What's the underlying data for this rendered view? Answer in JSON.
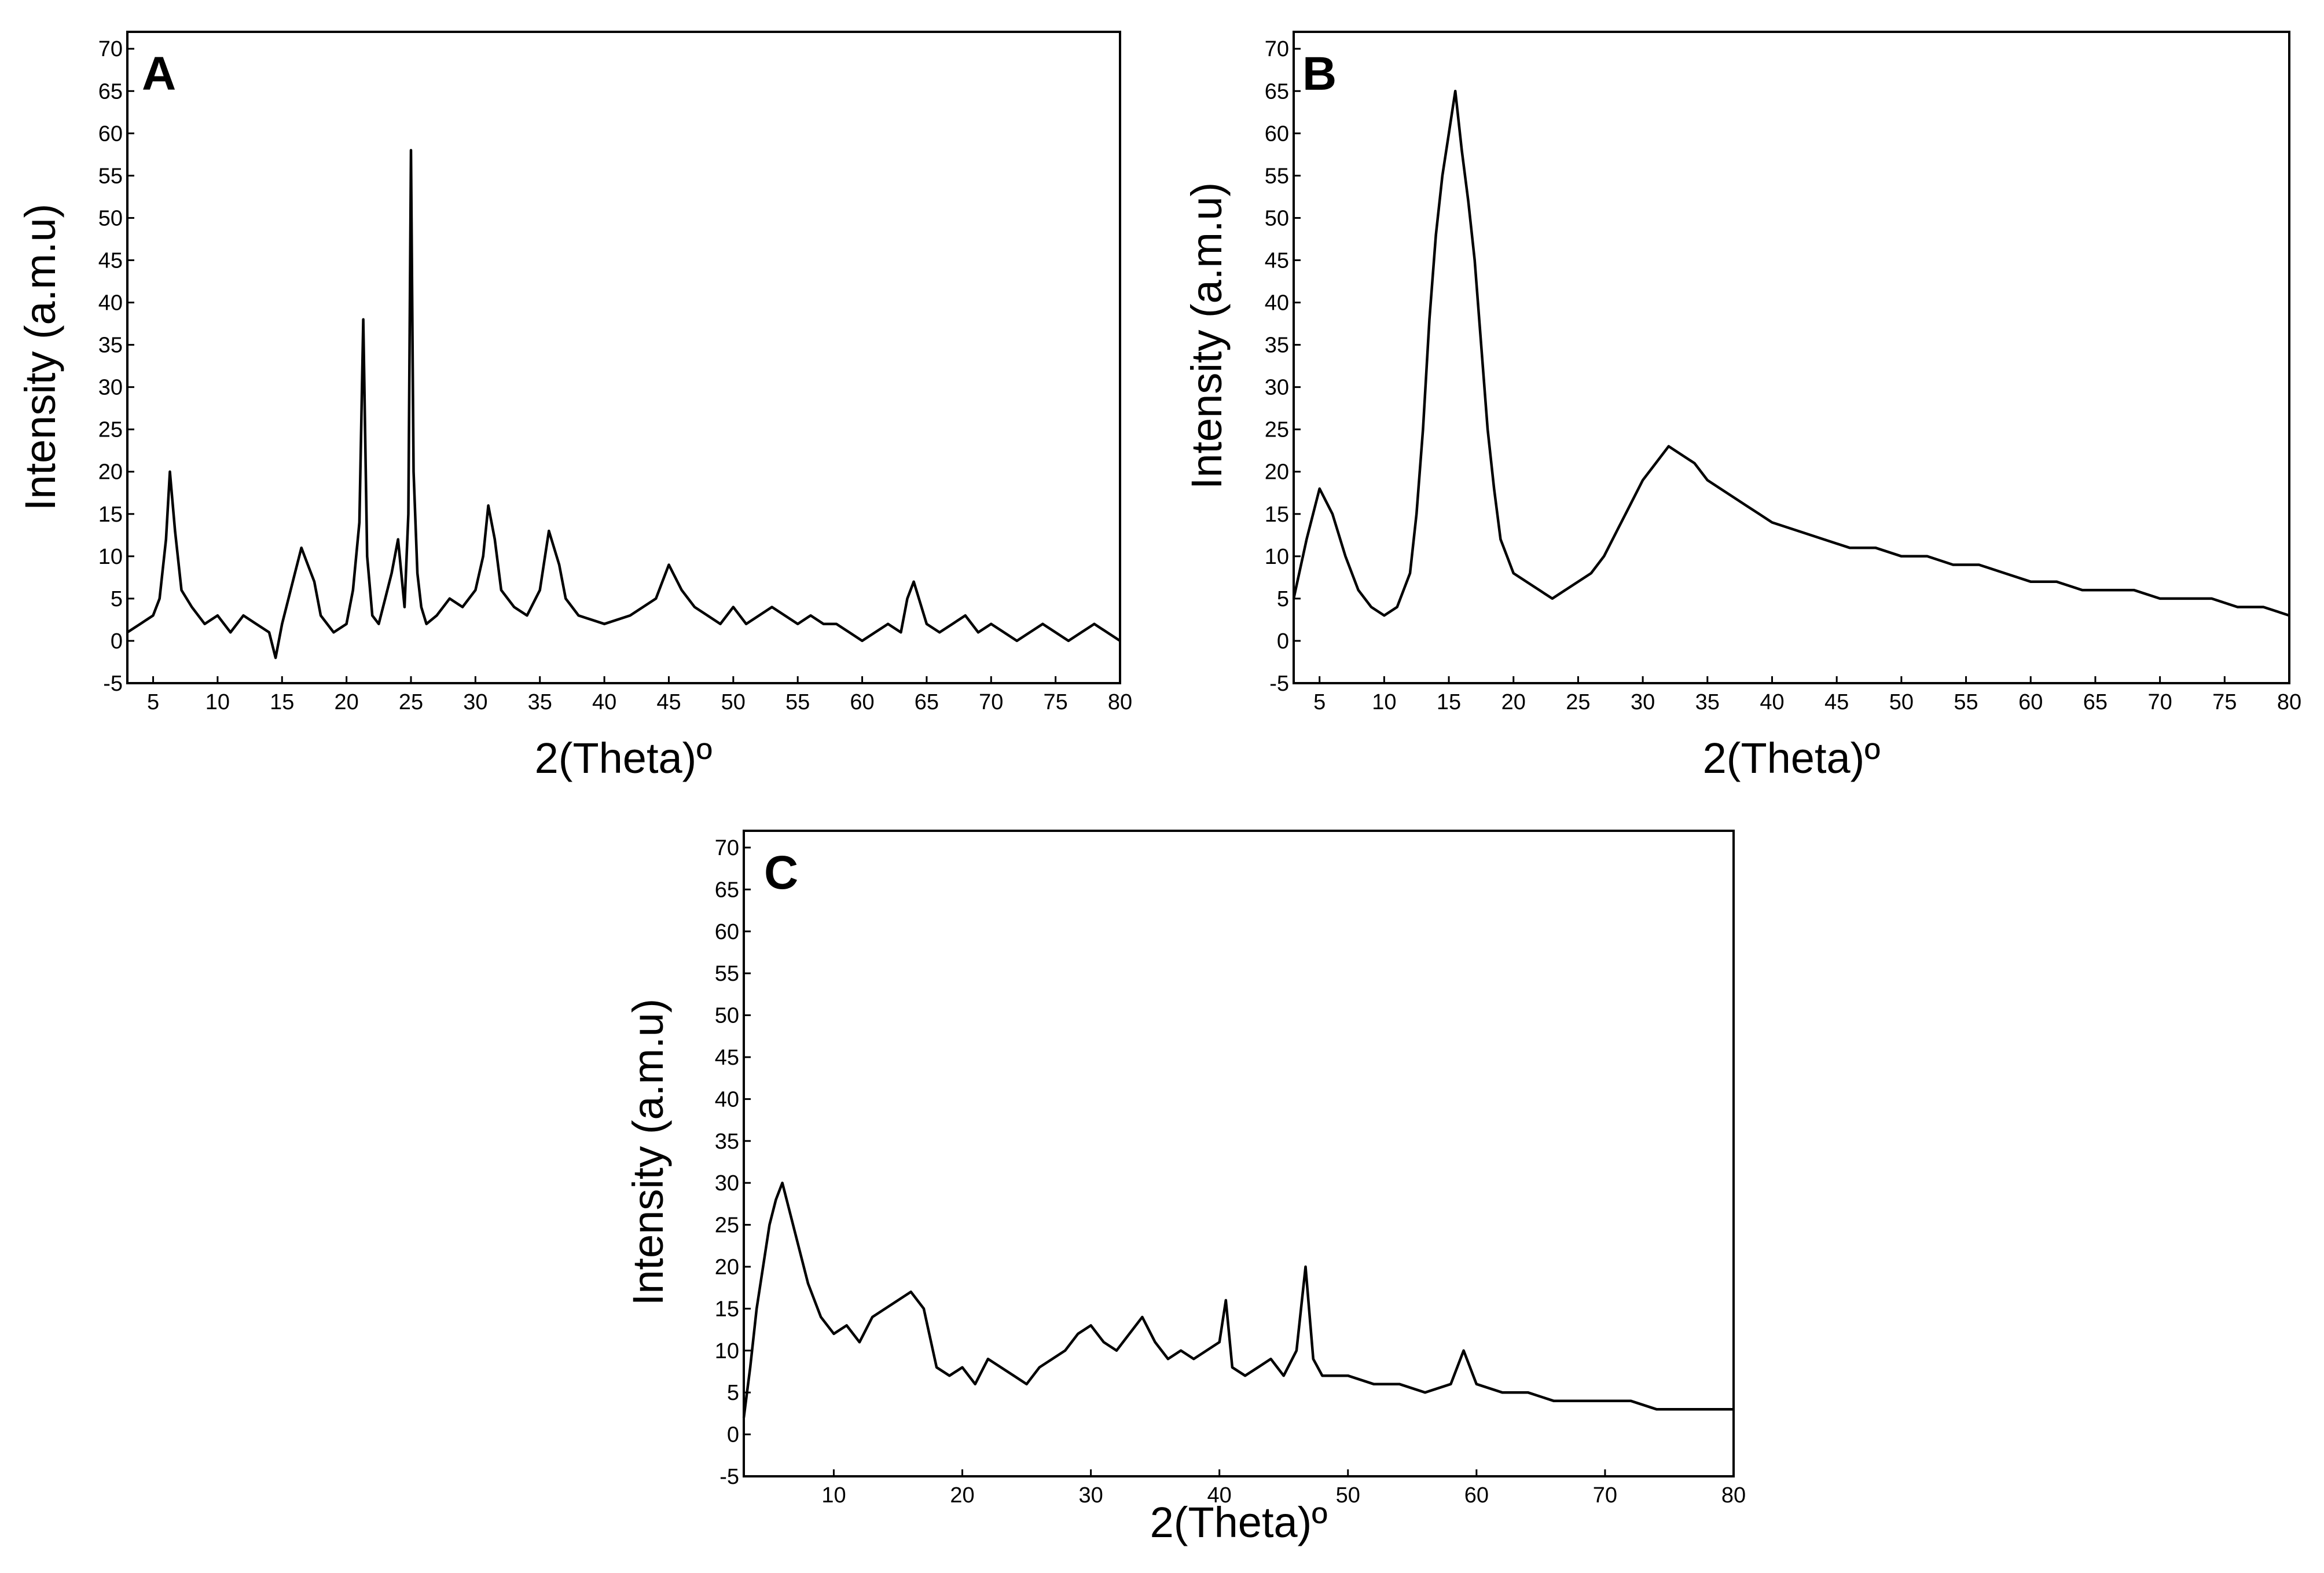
{
  "chart_data": [
    {
      "type": "line",
      "panel_label": "A",
      "xlabel": "2(Theta)º",
      "ylabel": "Intensity (a.m.u)",
      "xlim": [
        3,
        80
      ],
      "ylim": [
        -5,
        72
      ],
      "xticks": [
        5,
        10,
        15,
        20,
        25,
        30,
        35,
        40,
        45,
        50,
        55,
        60,
        65,
        70,
        75,
        80
      ],
      "yticks": [
        -5,
        0,
        5,
        10,
        15,
        20,
        25,
        30,
        35,
        40,
        45,
        50,
        55,
        60,
        65,
        70
      ],
      "x": [
        3,
        4,
        5,
        5.5,
        6,
        6.3,
        6.7,
        7.2,
        8,
        9,
        10,
        11,
        12,
        13,
        14,
        14.5,
        15,
        15.5,
        16,
        16.5,
        17,
        17.5,
        18,
        19,
        20,
        20.5,
        21,
        21.3,
        21.6,
        22,
        22.5,
        23,
        23.5,
        24,
        24.5,
        24.8,
        25,
        25.2,
        25.5,
        25.8,
        26.2,
        27,
        28,
        29,
        30,
        30.6,
        31,
        31.5,
        32,
        33,
        34,
        35,
        35.7,
        36.5,
        37,
        38,
        40,
        42,
        43,
        44,
        45,
        46,
        47,
        48,
        49,
        50,
        51,
        52,
        53,
        54,
        55,
        56,
        57,
        58,
        59,
        60,
        61,
        62,
        63,
        63.5,
        64,
        65,
        66,
        67,
        68,
        69,
        70,
        71,
        72,
        73,
        74,
        75,
        76,
        77,
        78,
        79,
        80
      ],
      "y": [
        1,
        2,
        3,
        5,
        12,
        20,
        13,
        6,
        4,
        2,
        3,
        1,
        3,
        2,
        1,
        -2,
        2,
        5,
        8,
        11,
        9,
        7,
        3,
        1,
        2,
        6,
        14,
        38,
        10,
        3,
        2,
        5,
        8,
        12,
        4,
        15,
        58,
        20,
        8,
        4,
        2,
        3,
        5,
        4,
        6,
        10,
        16,
        12,
        6,
        4,
        3,
        6,
        13,
        9,
        5,
        3,
        2,
        3,
        4,
        5,
        9,
        6,
        4,
        3,
        2,
        4,
        2,
        3,
        4,
        3,
        2,
        3,
        2,
        2,
        1,
        0,
        1,
        2,
        1,
        5,
        7,
        2,
        1,
        2,
        3,
        1,
        2,
        1,
        0,
        1,
        2,
        1,
        0,
        1,
        2,
        1,
        0
      ]
    },
    {
      "type": "line",
      "panel_label": "B",
      "xlabel": "2(Theta)º",
      "ylabel": "Intensity (a.m.u)",
      "xlim": [
        3,
        80
      ],
      "ylim": [
        -5,
        72
      ],
      "xticks": [
        5,
        10,
        15,
        20,
        25,
        30,
        35,
        40,
        45,
        50,
        55,
        60,
        65,
        70,
        75,
        80
      ],
      "yticks": [
        -5,
        0,
        5,
        10,
        15,
        20,
        25,
        30,
        35,
        40,
        45,
        50,
        55,
        60,
        65,
        70
      ],
      "x": [
        3,
        4,
        5,
        6,
        7,
        8,
        9,
        10,
        11,
        12,
        12.5,
        13,
        13.5,
        14,
        14.5,
        15,
        15.5,
        16,
        16.5,
        17,
        17.5,
        18,
        18.5,
        19,
        19.5,
        20,
        21,
        22,
        23,
        24,
        25,
        26,
        27,
        28,
        29,
        30,
        31,
        32,
        33,
        34,
        35,
        36,
        37,
        38,
        39,
        40,
        42,
        44,
        46,
        48,
        50,
        52,
        54,
        56,
        58,
        60,
        62,
        64,
        66,
        68,
        70,
        72,
        74,
        76,
        78,
        80
      ],
      "y": [
        5,
        12,
        18,
        15,
        10,
        6,
        4,
        3,
        4,
        8,
        15,
        25,
        38,
        48,
        55,
        60,
        65,
        58,
        52,
        45,
        35,
        25,
        18,
        12,
        10,
        8,
        7,
        6,
        5,
        6,
        7,
        8,
        10,
        13,
        16,
        19,
        21,
        23,
        22,
        21,
        19,
        18,
        17,
        16,
        15,
        14,
        13,
        12,
        11,
        11,
        10,
        10,
        9,
        9,
        8,
        7,
        7,
        6,
        6,
        6,
        5,
        5,
        5,
        4,
        4,
        3
      ]
    },
    {
      "type": "line",
      "panel_label": "C",
      "xlabel": "2(Theta)º",
      "ylabel": "Intensity (a.m.u)",
      "xlim": [
        3,
        80
      ],
      "ylim": [
        -5,
        72
      ],
      "xticks": [
        10,
        20,
        30,
        40,
        50,
        60,
        70,
        80
      ],
      "yticks": [
        -5,
        0,
        5,
        10,
        15,
        20,
        25,
        30,
        35,
        40,
        45,
        50,
        55,
        60,
        65,
        70
      ],
      "x": [
        3,
        3.5,
        4,
        4.5,
        5,
        5.5,
        6,
        6.5,
        7,
        8,
        9,
        10,
        11,
        12,
        13,
        14,
        15,
        16,
        17,
        18,
        19,
        20,
        21,
        22,
        23,
        24,
        25,
        26,
        27,
        28,
        29,
        30,
        31,
        32,
        33,
        34,
        35,
        36,
        37,
        38,
        39,
        40,
        40.5,
        41,
        42,
        43,
        44,
        45,
        46,
        46.7,
        47.3,
        48,
        50,
        52,
        54,
        56,
        58,
        59,
        60,
        62,
        64,
        66,
        68,
        70,
        72,
        74,
        76,
        78,
        80
      ],
      "y": [
        2,
        8,
        15,
        20,
        25,
        28,
        30,
        27,
        24,
        18,
        14,
        12,
        13,
        11,
        14,
        15,
        16,
        17,
        15,
        8,
        7,
        8,
        6,
        9,
        8,
        7,
        6,
        8,
        9,
        10,
        12,
        13,
        11,
        10,
        12,
        14,
        11,
        9,
        10,
        9,
        10,
        11,
        16,
        8,
        7,
        8,
        9,
        7,
        10,
        20,
        9,
        7,
        7,
        6,
        6,
        5,
        6,
        10,
        6,
        5,
        5,
        4,
        4,
        4,
        4,
        3,
        3,
        3,
        3
      ]
    }
  ]
}
